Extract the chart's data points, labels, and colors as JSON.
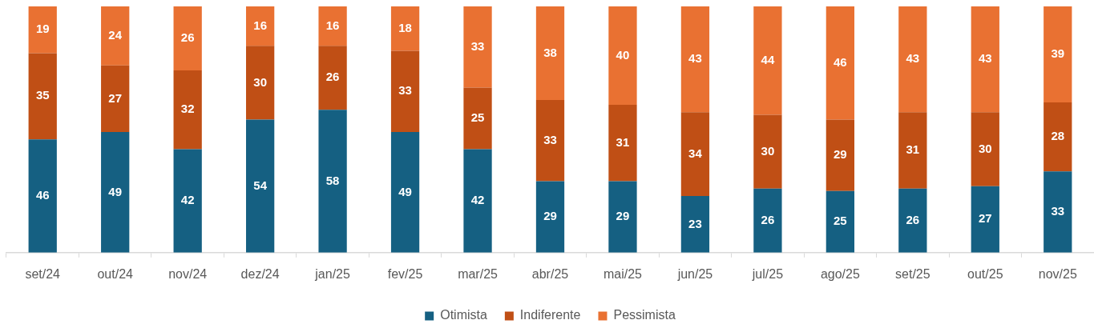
{
  "chart_data": {
    "type": "bar",
    "stacked": true,
    "data_labels": true,
    "legend": "bottom",
    "categories": [
      "set/24",
      "out/24",
      "nov/24",
      "dez/24",
      "jan/25",
      "fev/25",
      "mar/25",
      "abr/25",
      "mai/25",
      "jun/25",
      "jul/25",
      "ago/25",
      "set/25",
      "out/25",
      "nov/25"
    ],
    "series": [
      {
        "name": "Otimista",
        "color": "#156082",
        "values": [
          46,
          49,
          42,
          54,
          58,
          49,
          42,
          29,
          29,
          23,
          26,
          25,
          26,
          27,
          33
        ]
      },
      {
        "name": "Indiferente",
        "color": "#c04f15",
        "values": [
          35,
          27,
          32,
          30,
          26,
          33,
          25,
          33,
          31,
          34,
          30,
          29,
          31,
          30,
          28
        ]
      },
      {
        "name": "Pessimista",
        "color": "#e97132",
        "values": [
          19,
          24,
          26,
          16,
          16,
          18,
          33,
          38,
          40,
          43,
          44,
          46,
          43,
          43,
          39
        ]
      }
    ]
  }
}
